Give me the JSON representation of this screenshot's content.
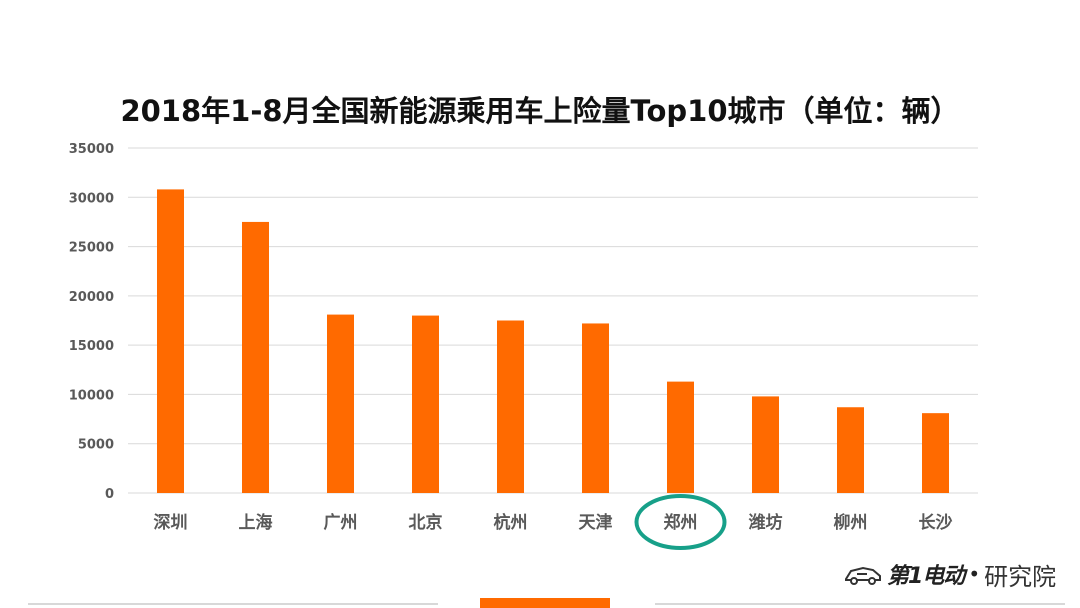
{
  "title": "2018年1-8月全国新能源乘用车上险量Top10城市（单位：辆）",
  "colors": {
    "bar": "#ff6a00",
    "highlight": "#17a089",
    "grid": "#d9d9d9",
    "axis_text": "#595959",
    "accent": "#ff6a00"
  },
  "chart_data": {
    "type": "bar",
    "title": "2018年1-8月全国新能源乘用车上险量Top10城市（单位：辆）",
    "categories": [
      "深圳",
      "上海",
      "广州",
      "北京",
      "杭州",
      "天津",
      "郑州",
      "潍坊",
      "柳州",
      "长沙"
    ],
    "values": [
      30800,
      27500,
      18100,
      18000,
      17500,
      17200,
      11300,
      9800,
      8700,
      8100
    ],
    "yticks": [
      "0",
      "5000",
      "10000",
      "15000",
      "20000",
      "25000",
      "30000",
      "35000"
    ],
    "ylim": [
      0,
      35000
    ],
    "grid": true,
    "highlighted_category": "郑州"
  },
  "logo": {
    "brand": "第1电动",
    "institute": "研究院",
    "icon": "car-icon"
  }
}
